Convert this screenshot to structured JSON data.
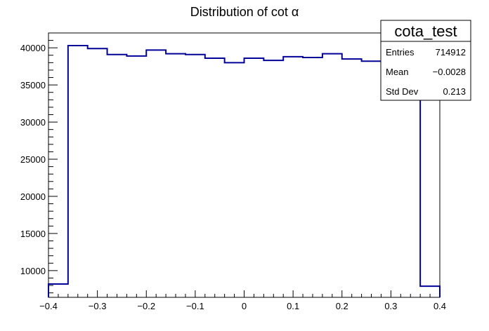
{
  "chart_data": {
    "type": "histogram",
    "title": "Distribution of cot  α",
    "xlabel": "",
    "ylabel": "",
    "xlim": [
      -0.4,
      0.4
    ],
    "ylim": [
      6400,
      42000
    ],
    "x_ticks": [
      -0.4,
      -0.3,
      -0.2,
      -0.1,
      0,
      0.1,
      0.2,
      0.3,
      0.4
    ],
    "x_tick_labels": [
      "−0.4",
      "−0.3",
      "−0.2",
      "−0.1",
      "0",
      "0.1",
      "0.2",
      "0.3",
      "0.4"
    ],
    "y_ticks": [
      10000,
      15000,
      20000,
      25000,
      30000,
      35000,
      40000
    ],
    "y_tick_labels": [
      "10000",
      "15000",
      "20000",
      "25000",
      "30000",
      "35000",
      "40000"
    ],
    "bin_edges": [
      -0.4,
      -0.36,
      -0.32,
      -0.28,
      -0.24,
      -0.2,
      -0.16,
      -0.12,
      -0.08,
      -0.04,
      0.0,
      0.04,
      0.08,
      0.12,
      0.16,
      0.2,
      0.24,
      0.28,
      0.32,
      0.36,
      0.4
    ],
    "bin_values": [
      8200,
      40300,
      39900,
      39100,
      38900,
      39700,
      39200,
      39100,
      38600,
      38000,
      38600,
      38300,
      38800,
      38700,
      39200,
      38500,
      38200,
      38000,
      38500,
      7900
    ],
    "line_color": "#000099",
    "stats_box": {
      "name": "cota_test",
      "rows": [
        {
          "label": "Entries",
          "value": "714912"
        },
        {
          "label": "Mean",
          "value": "−0.0028"
        },
        {
          "label": "Std Dev",
          "value": "0.213"
        }
      ]
    }
  }
}
